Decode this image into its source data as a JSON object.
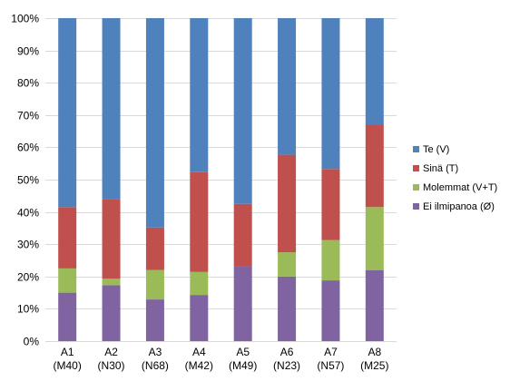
{
  "chart_data": {
    "type": "bar",
    "stacked": true,
    "title": "",
    "xlabel": "",
    "ylabel": "",
    "ylim": [
      0,
      100
    ],
    "y_ticks": [
      "0%",
      "10%",
      "20%",
      "30%",
      "40%",
      "50%",
      "60%",
      "70%",
      "80%",
      "90%",
      "100%"
    ],
    "grid": true,
    "legend_position": "right",
    "categories": [
      [
        "A1",
        "(M40)"
      ],
      [
        "A2",
        "(N30)"
      ],
      [
        "A3",
        "(N68)"
      ],
      [
        "A4",
        "(M42)"
      ],
      [
        "A5",
        "(M49)"
      ],
      [
        "A6",
        "(N23)"
      ],
      [
        "A7",
        "(N57)"
      ],
      [
        "A8",
        "(M25)"
      ]
    ],
    "series": [
      {
        "name": "Ei ilmipanoa (Ø)",
        "color": "#8064A2",
        "values": [
          15.0,
          17.3,
          12.9,
          14.3,
          23.3,
          20.0,
          18.8,
          22.0
        ]
      },
      {
        "name": "Molemmat (V+T)",
        "color": "#9BBB59",
        "values": [
          7.5,
          2.0,
          9.1,
          7.1,
          0.0,
          7.5,
          12.5,
          19.5
        ]
      },
      {
        "name": "Sinä (T)",
        "color": "#C0504D",
        "values": [
          19.0,
          24.7,
          13.2,
          30.9,
          19.2,
          30.2,
          22.0,
          25.5
        ]
      },
      {
        "name": "Te (V)",
        "color": "#4F81BD",
        "values": [
          58.5,
          56.0,
          64.8,
          47.7,
          57.5,
          42.3,
          46.7,
          33.0
        ]
      }
    ],
    "legend_order": [
      "Te (V)",
      "Sinä (T)",
      "Molemmat (V+T)",
      "Ei ilmipanoa (Ø)"
    ]
  }
}
